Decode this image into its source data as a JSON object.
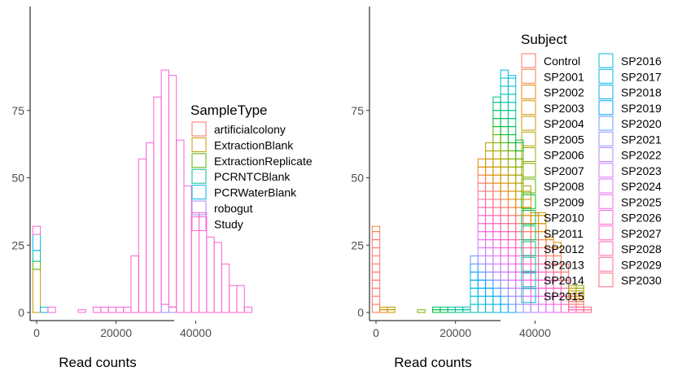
{
  "chart_data": [
    {
      "type": "bar",
      "subtype": "stacked-histogram-outline",
      "xlabel": "Read counts",
      "ylabel": "",
      "xlim": [
        -3000,
        57000
      ],
      "ylim": [
        0,
        90
      ],
      "xticks": [
        0,
        20000,
        40000
      ],
      "xtick_labels": [
        "0",
        "20000",
        "40000"
      ],
      "yticks": [
        0,
        25,
        50,
        75
      ],
      "ytick_labels": [
        "0",
        "25",
        "50",
        "75"
      ],
      "grid": false,
      "legend_position": "right",
      "legend_title": "SampleType",
      "legend_entries": [
        "artificialcolony",
        "ExtractionBlank",
        "ExtractionReplicate",
        "PCRNTCBlank",
        "PCRWaterBlank",
        "robogut",
        "Study"
      ],
      "bin_width": 1900,
      "bins_x": [
        0,
        1900,
        3800,
        5700,
        7600,
        9500,
        11400,
        13300,
        15200,
        17100,
        19000,
        20900,
        22800,
        24700,
        26600,
        28500,
        30400,
        32300,
        34200,
        36100,
        38000,
        39900,
        41800,
        43700,
        45600,
        47500,
        49400,
        51300,
        53200
      ],
      "totals": [
        32,
        2,
        2,
        0,
        0,
        0,
        1,
        0,
        2,
        2,
        2,
        2,
        2,
        21,
        57,
        63,
        80,
        90,
        88,
        64,
        47,
        37,
        37,
        28,
        26,
        18,
        10,
        10,
        2
      ],
      "series": [
        {
          "name": "artificialcolony",
          "color": "#F8766D",
          "values": [
            0,
            0,
            0,
            0,
            0,
            0,
            0,
            0,
            0,
            0,
            0,
            0,
            0,
            0,
            0,
            0,
            0,
            0,
            0,
            0,
            0,
            0,
            0,
            0,
            0,
            0,
            0,
            0,
            0
          ]
        },
        {
          "name": "ExtractionBlank",
          "color": "#C49A00",
          "values": [
            16,
            0,
            0,
            0,
            0,
            0,
            0,
            0,
            0,
            0,
            0,
            0,
            0,
            0,
            0,
            0,
            0,
            0,
            0,
            0,
            0,
            0,
            0,
            0,
            0,
            0,
            0,
            0,
            0
          ]
        },
        {
          "name": "ExtractionReplicate",
          "color": "#53B400",
          "values": [
            3,
            0,
            0,
            0,
            0,
            0,
            0,
            0,
            0,
            0,
            0,
            0,
            0,
            0,
            0,
            0,
            0,
            0,
            0,
            0,
            0,
            0,
            0,
            0,
            0,
            0,
            0,
            0,
            0
          ]
        },
        {
          "name": "PCRNTCBlank",
          "color": "#00C094",
          "values": [
            4,
            0,
            0,
            0,
            0,
            0,
            0,
            0,
            0,
            0,
            0,
            0,
            0,
            0,
            0,
            0,
            0,
            0,
            0,
            0,
            0,
            0,
            0,
            0,
            0,
            0,
            0,
            0,
            0
          ]
        },
        {
          "name": "PCRWaterBlank",
          "color": "#00B6EB",
          "values": [
            6,
            2,
            0,
            0,
            0,
            0,
            0,
            0,
            0,
            0,
            0,
            0,
            0,
            0,
            0,
            0,
            0,
            0,
            0,
            0,
            0,
            0,
            0,
            0,
            0,
            0,
            0,
            0,
            0
          ]
        },
        {
          "name": "robogut",
          "color": "#A58AFF",
          "values": [
            0,
            0,
            0,
            0,
            0,
            0,
            0,
            0,
            0,
            0,
            0,
            0,
            0,
            0,
            0,
            0,
            0,
            3,
            2,
            0,
            0,
            0,
            0,
            0,
            0,
            0,
            0,
            0,
            0
          ]
        },
        {
          "name": "Study",
          "color": "#FB61D7",
          "values": [
            3,
            0,
            2,
            0,
            0,
            0,
            1,
            0,
            2,
            2,
            2,
            2,
            2,
            21,
            57,
            63,
            80,
            87,
            86,
            64,
            47,
            37,
            37,
            28,
            26,
            18,
            10,
            10,
            2
          ]
        }
      ]
    },
    {
      "type": "bar",
      "subtype": "stacked-histogram-outline",
      "xlabel": "Read counts",
      "ylabel": "",
      "xlim": [
        -3000,
        57000
      ],
      "ylim": [
        0,
        90
      ],
      "xticks": [
        0,
        20000,
        40000
      ],
      "xtick_labels": [
        "0",
        "20000",
        "40000"
      ],
      "yticks": [
        0,
        25,
        50,
        75
      ],
      "ytick_labels": [
        "0",
        "25",
        "50",
        "75"
      ],
      "grid": false,
      "legend_position": "right",
      "legend_title": "Subject",
      "legend_entries": [
        "Control",
        "SP2001",
        "SP2002",
        "SP2003",
        "SP2004",
        "SP2005",
        "SP2006",
        "SP2007",
        "SP2008",
        "SP2009",
        "SP2010",
        "SP2011",
        "SP2012",
        "SP2013",
        "SP2014",
        "SP2015",
        "SP2016",
        "SP2017",
        "SP2018",
        "SP2019",
        "SP2020",
        "SP2021",
        "SP2022",
        "SP2023",
        "SP2024",
        "SP2025",
        "SP2026",
        "SP2027",
        "SP2028",
        "SP2029",
        "SP2030"
      ],
      "legend_colors": [
        "#F8766D",
        "#EF7F47",
        "#E38900",
        "#D49200",
        "#C49A00",
        "#B0A100",
        "#99A800",
        "#7CAE00",
        "#53B400",
        "#00B81F",
        "#00BB4E",
        "#00BE6C",
        "#00C087",
        "#00C19F",
        "#00C1B2",
        "#00BEC4",
        "#00BAD6",
        "#00B4E4",
        "#00ADF0",
        "#00A5FF",
        "#619CFF",
        "#9590FF",
        "#B983FF",
        "#D277FF",
        "#E56DF6",
        "#F265E8",
        "#FB61D7",
        "#FF61C6",
        "#FF62B2",
        "#FF689C",
        "#FC6F84"
      ],
      "bin_width": 1900,
      "bins_x": [
        0,
        1900,
        3800,
        5700,
        7600,
        9500,
        11400,
        13300,
        15200,
        17100,
        19000,
        20900,
        22800,
        24700,
        26600,
        28500,
        30400,
        32300,
        34200,
        36100,
        38000,
        39900,
        41800,
        43700,
        45600,
        47500,
        49400,
        51300,
        53200
      ],
      "totals": [
        32,
        2,
        2,
        0,
        0,
        0,
        1,
        0,
        2,
        2,
        2,
        2,
        2,
        21,
        57,
        63,
        80,
        90,
        88,
        64,
        47,
        37,
        37,
        28,
        26,
        18,
        10,
        10,
        2
      ]
    }
  ]
}
